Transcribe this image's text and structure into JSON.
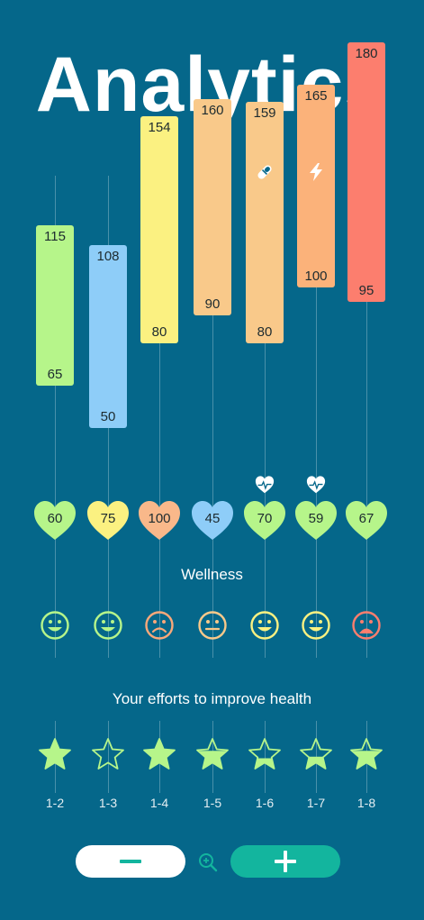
{
  "header": {
    "title": "Analytics"
  },
  "colors": {
    "background": "#05678a",
    "bar_green": "#b6f58a",
    "bar_blue": "#8ecdf8",
    "bar_yellow": "#fbf181",
    "bar_orange_light": "#f9c98a",
    "bar_orange": "#fbb27a",
    "bar_red": "#fc7e6e",
    "plus_button": "#13b59e"
  },
  "chart_data": {
    "type": "range-bar",
    "categories": [
      "1-2",
      "1-3",
      "1-4",
      "1-5",
      "1-6",
      "1-7",
      "1-8"
    ],
    "high": [
      115,
      108,
      154,
      160,
      159,
      165,
      180
    ],
    "low": [
      65,
      50,
      80,
      90,
      80,
      100,
      95
    ],
    "bar_colors": [
      "#b6f58a",
      "#8ecdf8",
      "#fbf181",
      "#f9c98a",
      "#f9c98a",
      "#fbb27a",
      "#fc7e6e"
    ],
    "top_icons": [
      "",
      "",
      "",
      "",
      "pill-icon",
      "lightning-icon",
      ""
    ],
    "pulse_icons": [
      false,
      false,
      false,
      false,
      true,
      true,
      false
    ],
    "ylim": [
      40,
      190
    ]
  },
  "hearts": {
    "values": [
      "60",
      "75",
      "100",
      "45",
      "70",
      "59",
      "67"
    ],
    "colors": [
      "#b6f58a",
      "#fbf181",
      "#f9b88a",
      "#8ecdf8",
      "#b6f58a",
      "#b6f58a",
      "#b6f58a"
    ]
  },
  "wellness": {
    "title": "Wellness",
    "faces": [
      "happy",
      "happy",
      "sad",
      "neutral",
      "happy",
      "happy",
      "very-sad"
    ],
    "colors": [
      "#b6f58a",
      "#b6f58a",
      "#f9a87a",
      "#f9c98a",
      "#fbf181",
      "#fbf181",
      "#fc7e6e"
    ]
  },
  "efforts": {
    "title": "Your efforts to improve health",
    "levels": [
      1.0,
      0.0,
      1.0,
      0.6,
      0.35,
      0.4,
      0.6
    ],
    "labels": [
      "1-2",
      "1-3",
      "1-4",
      "1-5",
      "1-6",
      "1-7",
      "1-8"
    ]
  },
  "controls": {
    "minus_symbol": "−",
    "plus_symbol": "+"
  }
}
